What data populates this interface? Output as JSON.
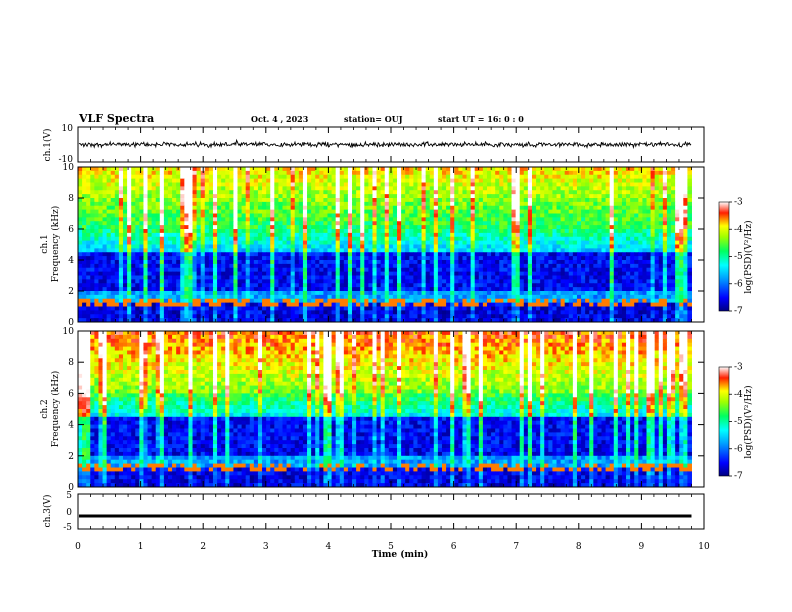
{
  "header": {
    "title": "VLF Spectra",
    "date": "Oct. 4 , 2023",
    "station": "station= OUJ",
    "start": "start UT = 16: 0 : 0"
  },
  "chart_data": [
    {
      "type": "line",
      "title": "",
      "ylabel": "ch.1(V)",
      "ylim": [
        -10,
        10
      ],
      "yticks": [
        10,
        -10
      ],
      "xlim": [
        0,
        10
      ],
      "series": [
        {
          "x": [
            0,
            9.8
          ],
          "y": [
            0,
            0
          ],
          "amplitude": 1.2
        }
      ]
    },
    {
      "type": "heatmap",
      "ylabel_line1": "ch.1",
      "ylabel": "Frequency (kHz)",
      "ylim": [
        0,
        10
      ],
      "yticks": [
        0,
        2,
        4,
        6,
        8,
        10
      ],
      "xlim": [
        0,
        10
      ],
      "data_end": 9.8,
      "colorbar": {
        "label": "log(PSD)(V²/Hz)",
        "range": [
          -7,
          -3
        ],
        "ticks": [
          -3,
          -4,
          -5,
          -6,
          -7
        ]
      }
    },
    {
      "type": "heatmap",
      "ylabel_line1": "ch.2",
      "ylabel": "Frequency (kHz)",
      "ylim": [
        0,
        10
      ],
      "yticks": [
        0,
        2,
        4,
        6,
        8,
        10
      ],
      "xlim": [
        0,
        10
      ],
      "data_end": 9.8,
      "colorbar": {
        "label": "log(PSD)(V²/Hz)",
        "range": [
          -7,
          -3
        ],
        "ticks": [
          -3,
          -4,
          -5,
          -6,
          -7
        ]
      }
    },
    {
      "type": "line",
      "ylabel": "ch.3(V)",
      "ylim": [
        -5,
        5
      ],
      "yticks": [
        5,
        0,
        -5
      ],
      "xlim": [
        0,
        10
      ],
      "series": [
        {
          "x": [
            0,
            9.8
          ],
          "y": [
            -1.3,
            -1.3
          ]
        }
      ]
    }
  ],
  "xaxis": {
    "label": "Time (min)",
    "ticks": [
      0,
      1,
      2,
      3,
      4,
      5,
      6,
      7,
      8,
      9,
      10
    ]
  },
  "colors": {
    "line": "#000000",
    "background": "#ffffff"
  }
}
